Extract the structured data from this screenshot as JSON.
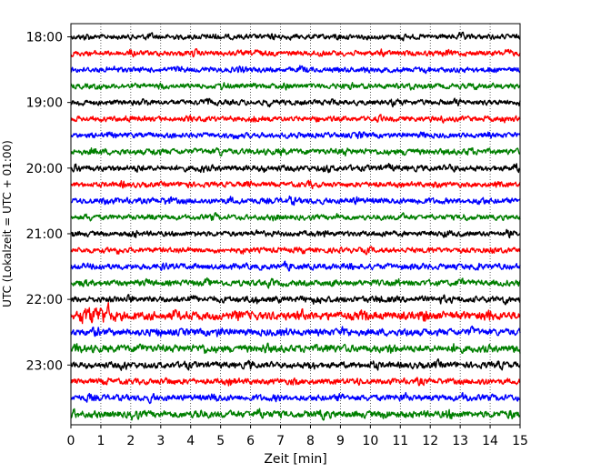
{
  "chart_data": {
    "type": "line",
    "title": "",
    "xlabel": "Zeit  [min]",
    "ylabel": "UTC (Lokalzeit = UTC + 01:00)",
    "xlim": [
      0,
      15
    ],
    "x_ticks": [
      "0",
      "1",
      "2",
      "3",
      "4",
      "5",
      "6",
      "7",
      "8",
      "9",
      "10",
      "11",
      "12",
      "13",
      "14",
      "15"
    ],
    "y_ticks": [
      "18:00",
      "19:00",
      "20:00",
      "21:00",
      "22:00",
      "23:00"
    ],
    "grid": "vertical dotted",
    "trace_interval_minutes": 15,
    "trace_colors": [
      "#000000",
      "#ff0000",
      "#0000ff",
      "#007f00"
    ],
    "series": [
      {
        "start": "18:00",
        "color": "#000000",
        "amplitude": 0.25
      },
      {
        "start": "18:15",
        "color": "#ff0000",
        "amplitude": 0.25
      },
      {
        "start": "18:30",
        "color": "#0000ff",
        "amplitude": 0.25
      },
      {
        "start": "18:45",
        "color": "#007f00",
        "amplitude": 0.25
      },
      {
        "start": "19:00",
        "color": "#000000",
        "amplitude": 0.25
      },
      {
        "start": "19:15",
        "color": "#ff0000",
        "amplitude": 0.25
      },
      {
        "start": "19:30",
        "color": "#0000ff",
        "amplitude": 0.25
      },
      {
        "start": "19:45",
        "color": "#007f00",
        "amplitude": 0.28
      },
      {
        "start": "20:00",
        "color": "#000000",
        "amplitude": 0.28
      },
      {
        "start": "20:15",
        "color": "#ff0000",
        "amplitude": 0.25
      },
      {
        "start": "20:30",
        "color": "#0000ff",
        "amplitude": 0.28
      },
      {
        "start": "20:45",
        "color": "#007f00",
        "amplitude": 0.25
      },
      {
        "start": "21:00",
        "color": "#000000",
        "amplitude": 0.25
      },
      {
        "start": "21:15",
        "color": "#ff0000",
        "amplitude": 0.25
      },
      {
        "start": "21:30",
        "color": "#0000ff",
        "amplitude": 0.28
      },
      {
        "start": "21:45",
        "color": "#007f00",
        "amplitude": 0.28
      },
      {
        "start": "22:00",
        "color": "#000000",
        "amplitude": 0.3
      },
      {
        "start": "22:15",
        "color": "#ff0000",
        "amplitude": 0.4
      },
      {
        "start": "22:30",
        "color": "#0000ff",
        "amplitude": 0.33
      },
      {
        "start": "22:45",
        "color": "#007f00",
        "amplitude": 0.35
      },
      {
        "start": "23:00",
        "color": "#000000",
        "amplitude": 0.3
      },
      {
        "start": "23:15",
        "color": "#ff0000",
        "amplitude": 0.28
      },
      {
        "start": "23:30",
        "color": "#0000ff",
        "amplitude": 0.3
      },
      {
        "start": "23:45",
        "color": "#007f00",
        "amplitude": 0.33
      }
    ]
  }
}
